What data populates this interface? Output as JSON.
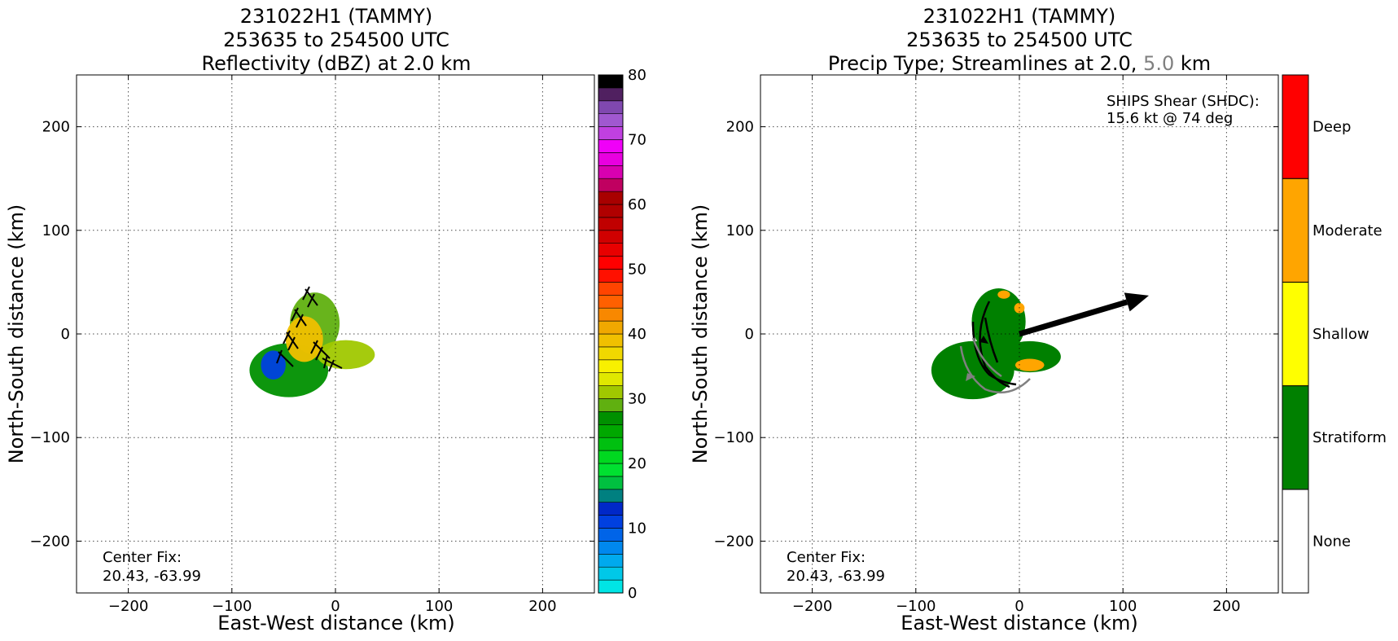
{
  "chart_data": [
    {
      "type": "heatmap",
      "title": [
        "231022H1 (TAMMY)",
        "253635 to 254500 UTC",
        "Reflectivity (dBZ) at 2.0 km"
      ],
      "xlabel": "East-West distance (km)",
      "ylabel": "North-South distance (km)",
      "xlim": [
        -250,
        250
      ],
      "ylim": [
        -250,
        250
      ],
      "xticks": [
        -200,
        -100,
        0,
        100,
        200
      ],
      "yticks": [
        -200,
        -100,
        0,
        100,
        200
      ],
      "xtick_labels": [
        "−200",
        "−100",
        "0",
        "100",
        "200"
      ],
      "ytick_labels": [
        "−200",
        "−100",
        "0",
        "100",
        "200"
      ],
      "grid": true,
      "annotation": [
        "Center Fix:",
        "20.43, -63.99"
      ],
      "colorbar": {
        "range": [
          0,
          80
        ],
        "step": 2,
        "tick_values": [
          0,
          10,
          20,
          30,
          40,
          50,
          60,
          70,
          80
        ],
        "tick_labels": [
          "0",
          "10",
          "20",
          "30",
          "40",
          "50",
          "60",
          "70",
          "80"
        ],
        "colors": [
          "#00e5e5",
          "#00c8e8",
          "#00aaee",
          "#0088ee",
          "#0064e8",
          "#0040e0",
          "#0028c8",
          "#008080",
          "#00c040",
          "#00e030",
          "#00d820",
          "#00c010",
          "#00a800",
          "#009000",
          "#60b010",
          "#a0c800",
          "#e0e800",
          "#f8f000",
          "#f0d800",
          "#f0c000",
          "#f0a800",
          "#f88800",
          "#ff6000",
          "#ff4400",
          "#ff1000",
          "#ff0000",
          "#e80000",
          "#d00000",
          "#c00000",
          "#b00000",
          "#a80000",
          "#c00060",
          "#d800b0",
          "#e800e0",
          "#f000f8",
          "#c040e0",
          "#a058d0",
          "#8048b0",
          "#502060",
          "#000000"
        ]
      },
      "echo_regions_dbz": [
        {
          "x": -45,
          "y": -35,
          "rx": 38,
          "ry": 26,
          "dbz": 26
        },
        {
          "x": -20,
          "y": 10,
          "rx": 24,
          "ry": 30,
          "dbz": 28
        },
        {
          "x": 10,
          "y": -20,
          "rx": 28,
          "ry": 14,
          "dbz": 30
        },
        {
          "x": -30,
          "y": -5,
          "rx": 18,
          "ry": 22,
          "dbz": 38
        },
        {
          "x": -60,
          "y": -30,
          "rx": 12,
          "ry": 14,
          "dbz": 10
        }
      ]
    },
    {
      "type": "heatmap",
      "title_lines": [
        "231022H1 (TAMMY)",
        "253635 to 254500 UTC"
      ],
      "title_line3": {
        "a": "Precip Type; Streamlines at 2.0,",
        "b": "5.0",
        "c": "km",
        "b_color": "#808080"
      },
      "xlabel": "East-West distance (km)",
      "ylabel": "North-South distance (km)",
      "xlim": [
        -250,
        250
      ],
      "ylim": [
        -250,
        250
      ],
      "xticks": [
        -200,
        -100,
        0,
        100,
        200
      ],
      "yticks": [
        -200,
        -100,
        0,
        100,
        200
      ],
      "xtick_labels": [
        "−200",
        "−100",
        "0",
        "100",
        "200"
      ],
      "ytick_labels": [
        "−200",
        "−100",
        "0",
        "100",
        "200"
      ],
      "grid": true,
      "annotation": [
        "Center Fix:",
        "20.43, -63.99"
      ],
      "shear_text": [
        "SHIPS Shear (SHDC):",
        "15.6 kt @ 74 deg"
      ],
      "shear_vector": {
        "from": [
          0,
          0
        ],
        "to": [
          125,
          37
        ],
        "speed_kt": 15.6,
        "direction_deg": 74
      },
      "categories": [
        {
          "label": "None",
          "color": "#ffffff"
        },
        {
          "label": "Stratiform",
          "color": "#008000"
        },
        {
          "label": "Shallow",
          "color": "#ffff00"
        },
        {
          "label": "Moderate",
          "color": "#ffa500"
        },
        {
          "label": "Deep",
          "color": "#ff0000"
        }
      ],
      "precip_regions": [
        {
          "x": -45,
          "y": -35,
          "rx": 40,
          "ry": 28,
          "category": "Stratiform"
        },
        {
          "x": -20,
          "y": 12,
          "rx": 26,
          "ry": 32,
          "category": "Stratiform"
        },
        {
          "x": 10,
          "y": -22,
          "rx": 30,
          "ry": 15,
          "category": "Stratiform"
        },
        {
          "x": 10,
          "y": -30,
          "rx": 14,
          "ry": 6,
          "category": "Moderate"
        },
        {
          "x": -15,
          "y": 38,
          "rx": 6,
          "ry": 4,
          "category": "Moderate"
        },
        {
          "x": 0,
          "y": 25,
          "rx": 5,
          "ry": 5,
          "category": "Moderate"
        }
      ]
    }
  ]
}
